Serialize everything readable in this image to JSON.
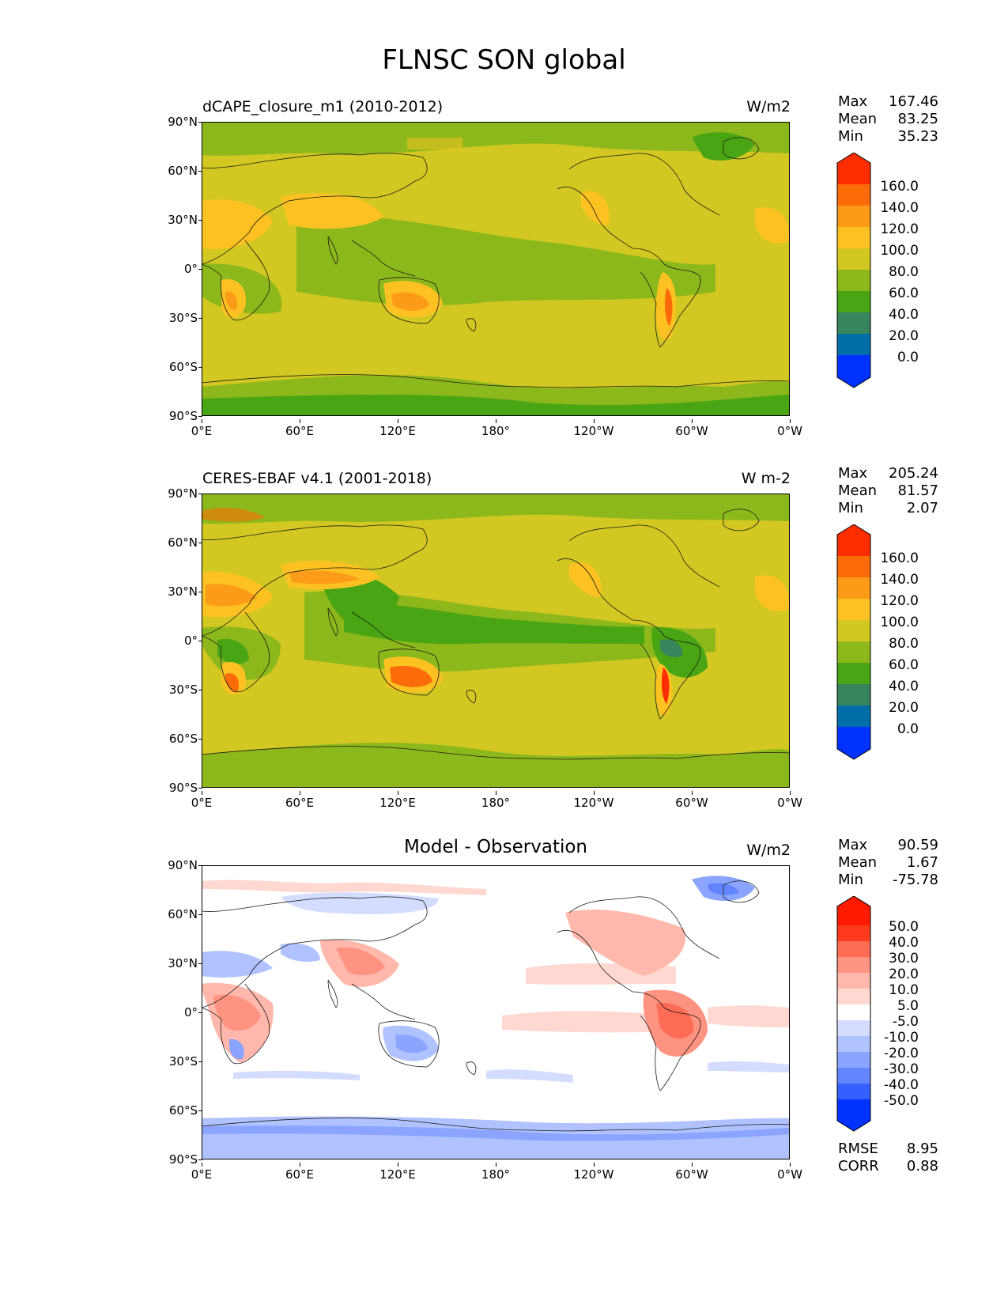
{
  "figure_title": "FLNSC SON global",
  "lat_labels": [
    "90°N",
    "60°N",
    "30°N",
    "0°",
    "30°S",
    "60°S",
    "90°S"
  ],
  "lon_labels": [
    "0°E",
    "60°E",
    "120°E",
    "180°",
    "120°W",
    "60°W",
    "0°W"
  ],
  "colors": {
    "abs": [
      "#0032ff",
      "#006ea8",
      "#38845c",
      "#4aa515",
      "#8db81b",
      "#d3c822",
      "#fdc122",
      "#fc9b17",
      "#fb6b0a",
      "#fe2d00"
    ],
    "diff": [
      "#0032ff",
      "#3560ff",
      "#6384ff",
      "#8aa4ff",
      "#b0c2ff",
      "#d4dcff",
      "#ffffff",
      "#ffd9d1",
      "#ffb8ab",
      "#ff9382",
      "#ff6c55",
      "#ff3a1c",
      "#ff1a00"
    ]
  },
  "panels": [
    {
      "left_title": "dCAPE_closure_m1 (2010-2012)",
      "units": "W/m2",
      "stats": {
        "max_label": "Max",
        "max": "167.46",
        "mean_label": "Mean",
        "mean": "83.25",
        "min_label": "Min",
        "min": "35.23"
      },
      "colorbar_labels": [
        "160.0",
        "140.0",
        "120.0",
        "100.0",
        "80.0",
        "60.0",
        "40.0",
        "20.0",
        "0.0"
      ]
    },
    {
      "left_title": "CERES-EBAF v4.1 (2001-2018)",
      "units": "W m-2",
      "stats": {
        "max_label": "Max",
        "max": "205.24",
        "mean_label": "Mean",
        "mean": "81.57",
        "min_label": "Min",
        "min": "2.07"
      },
      "colorbar_labels": [
        "160.0",
        "140.0",
        "120.0",
        "100.0",
        "80.0",
        "60.0",
        "40.0",
        "20.0",
        "0.0"
      ]
    },
    {
      "center_title": "Model - Observation",
      "units": "W/m2",
      "stats": {
        "max_label": "Max",
        "max": "90.59",
        "mean_label": "Mean",
        "mean": "1.67",
        "min_label": "Min",
        "min": "-75.78"
      },
      "colorbar_labels": [
        "50.0",
        "40.0",
        "30.0",
        "20.0",
        "10.0",
        "5.0",
        "-5.0",
        "-10.0",
        "-20.0",
        "-30.0",
        "-40.0",
        "-50.0"
      ],
      "rmse_label": "RMSE",
      "rmse": "8.95",
      "corr_label": "CORR",
      "corr": "0.88"
    }
  ]
}
